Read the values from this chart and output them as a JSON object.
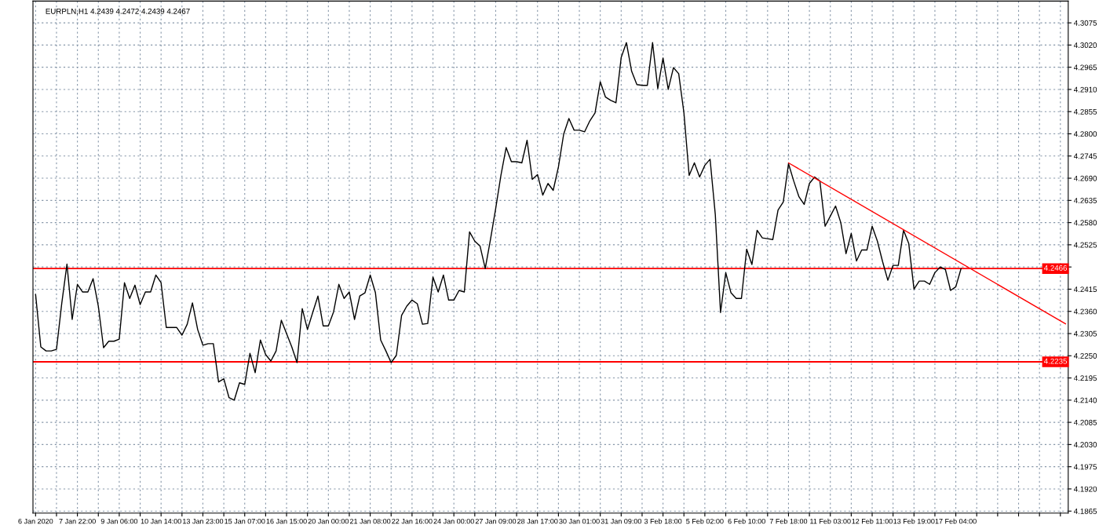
{
  "chart_data": {
    "type": "line",
    "title": "EURPLN,H1 4.2439 4.2472 4.2439 4.2467",
    "categories": [
      "6 Jan 2020",
      null,
      null,
      null,
      null,
      null,
      null,
      null,
      "7 Jan 22:00",
      null,
      null,
      null,
      null,
      null,
      null,
      null,
      "9 Jan 06:00",
      null,
      null,
      null,
      null,
      null,
      null,
      null,
      "10 Jan 14:00",
      null,
      null,
      null,
      null,
      null,
      null,
      null,
      "13 Jan 23:00",
      null,
      null,
      null,
      null,
      null,
      null,
      null,
      "15 Jan 07:00",
      null,
      null,
      null,
      null,
      null,
      null,
      null,
      "16 Jan 15:00",
      null,
      null,
      null,
      null,
      null,
      null,
      null,
      "20 Jan 00:00",
      null,
      null,
      null,
      null,
      null,
      null,
      null,
      "21 Jan 08:00",
      null,
      null,
      null,
      null,
      null,
      null,
      null,
      "22 Jan 16:00",
      null,
      null,
      null,
      null,
      null,
      null,
      null,
      "24 Jan 00:00",
      null,
      null,
      null,
      null,
      null,
      null,
      null,
      "27 Jan 09:00",
      null,
      null,
      null,
      null,
      null,
      null,
      null,
      "28 Jan 17:00",
      null,
      null,
      null,
      null,
      null,
      null,
      null,
      "30 Jan 01:00",
      null,
      null,
      null,
      null,
      null,
      null,
      null,
      "31 Jan 09:00",
      null,
      null,
      null,
      null,
      null,
      null,
      null,
      "3 Feb 18:00",
      null,
      null,
      null,
      null,
      null,
      null,
      null,
      "5 Feb 02:00",
      null,
      null,
      null,
      null,
      null,
      null,
      null,
      "6 Feb 10:00",
      null,
      null,
      null,
      null,
      null,
      null,
      null,
      "7 Feb 18:00",
      null,
      null,
      null,
      null,
      null,
      null,
      null,
      "11 Feb 03:00",
      null,
      null,
      null,
      null,
      null,
      null,
      null,
      "12 Feb 11:00",
      null,
      null,
      null,
      null,
      null,
      null,
      null,
      "13 Feb 19:00",
      null,
      null,
      null,
      null,
      null,
      null,
      null,
      "17 Feb 04:00",
      null,
      null,
      null,
      null,
      null,
      null,
      null,
      null,
      null,
      null,
      null,
      null,
      null,
      null,
      null,
      null,
      null,
      null,
      null,
      null,
      null
    ],
    "ylim": [
      4.186,
      4.3129
    ],
    "yticks": [
      {
        "value": 4.1865,
        "label": "4.1865"
      },
      {
        "value": 4.192,
        "label": "4.1920"
      },
      {
        "value": 4.1975,
        "label": "4.1975"
      },
      {
        "value": 4.203,
        "label": "4.2030"
      },
      {
        "value": 4.2085,
        "label": "4.2085"
      },
      {
        "value": 4.214,
        "label": "4.2140"
      },
      {
        "value": 4.2195,
        "label": "4.2195"
      },
      {
        "value": 4.225,
        "label": "4.2250"
      },
      {
        "value": 4.2305,
        "label": "4.2305"
      },
      {
        "value": 4.236,
        "label": "4.2360"
      },
      {
        "value": 4.2415,
        "label": "4.2415"
      },
      {
        "value": 4.247,
        "label": null
      },
      {
        "value": 4.2525,
        "label": "4.2525"
      },
      {
        "value": 4.258,
        "label": "4.2580"
      },
      {
        "value": 4.2635,
        "label": "4.2635"
      },
      {
        "value": 4.269,
        "label": "4.2690"
      },
      {
        "value": 4.2745,
        "label": "4.2745"
      },
      {
        "value": 4.28,
        "label": "4.2800"
      },
      {
        "value": 4.2855,
        "label": "4.2855"
      },
      {
        "value": 4.291,
        "label": "4.2910"
      },
      {
        "value": 4.2965,
        "label": "4.2965"
      },
      {
        "value": 4.302,
        "label": "4.3020"
      },
      {
        "value": 4.3075,
        "label": "4.3075"
      }
    ],
    "grid": true,
    "marker": "none",
    "line_style": "solid",
    "ref_lines": [
      {
        "axis": "y",
        "value": 4.2466,
        "label": "4.2466",
        "color": "#ff0000"
      },
      {
        "axis": "y",
        "value": 4.2235,
        "label": "4.2235",
        "color": "#ff0000"
      }
    ],
    "series": [
      {
        "color": "#000000",
        "values": [
          4.2402,
          4.2272,
          4.2262,
          4.2262,
          4.2266,
          4.2379,
          4.2477,
          4.234,
          4.2427,
          4.2408,
          4.2408,
          4.2441,
          4.2373,
          4.227,
          4.2286,
          4.2286,
          4.2291,
          4.2431,
          4.2392,
          4.2425,
          4.2377,
          4.2408,
          4.2408,
          4.245,
          4.2431,
          4.232,
          4.232,
          4.232,
          4.2301,
          4.2328,
          4.2381,
          4.2315,
          4.2276,
          4.228,
          4.228,
          4.2185,
          4.2193,
          4.2146,
          4.214,
          4.2183,
          4.2179,
          4.2256,
          4.2208,
          4.2289,
          4.2253,
          4.2237,
          4.2262,
          4.2338,
          4.2305,
          4.2272,
          4.2233,
          4.2367,
          4.2315,
          4.2357,
          4.2398,
          4.2324,
          4.2324,
          4.2359,
          4.2427,
          4.2392,
          4.2408,
          4.234,
          4.2398,
          4.2406,
          4.245,
          4.2406,
          4.2289,
          4.2262,
          4.2233,
          4.2251,
          4.235,
          4.2373,
          4.2388,
          4.2379,
          4.2328,
          4.233,
          4.2445,
          4.2408,
          4.245,
          4.2388,
          4.2388,
          4.2412,
          4.2408,
          4.2557,
          4.2534,
          4.2522,
          4.2466,
          4.2538,
          4.2615,
          4.2697,
          4.2766,
          4.2731,
          4.2731,
          4.2728,
          4.2784,
          4.2687,
          4.2699,
          4.2648,
          4.2677,
          4.266,
          4.2718,
          4.2799,
          4.2838,
          4.2809,
          4.2809,
          4.2805,
          4.2832,
          4.2852,
          4.2929,
          4.2891,
          4.2883,
          4.2877,
          4.2989,
          4.3026,
          4.2955,
          4.2922,
          4.292,
          4.292,
          4.3026,
          4.2912,
          4.2988,
          4.291,
          4.2964,
          4.2949,
          4.2852,
          4.2697,
          4.2728,
          4.2693,
          4.2722,
          4.2737,
          4.26,
          4.2357,
          4.2456,
          4.2406,
          4.2392,
          4.2392,
          4.2514,
          4.2476,
          4.2561,
          4.2542,
          4.254,
          4.2538,
          4.2611,
          4.2631,
          4.2726,
          4.2683,
          4.2644,
          4.2625,
          4.2677,
          4.2693,
          4.2683,
          4.2571,
          4.2596,
          4.2621,
          4.258,
          4.2503,
          4.2553,
          4.2485,
          4.2512,
          4.2512,
          4.2571,
          4.2534,
          4.2483,
          4.2437,
          4.2474,
          4.2474,
          4.2561,
          4.2528,
          4.2415,
          4.2435,
          4.2435,
          4.2427,
          4.2456,
          4.247,
          4.2464,
          4.2412,
          4.2421,
          4.2466,
          null,
          null,
          null,
          null,
          null,
          null,
          null,
          null,
          null,
          null,
          null,
          null,
          null,
          null,
          null,
          null,
          null,
          null,
          null,
          null
        ]
      },
      {
        "type": "line",
        "color": "#ff0000",
        "values": [
          null,
          null,
          null,
          null,
          null,
          null,
          null,
          null,
          null,
          null,
          null,
          null,
          null,
          null,
          null,
          null,
          null,
          null,
          null,
          null,
          null,
          null,
          null,
          null,
          null,
          null,
          null,
          null,
          null,
          null,
          null,
          null,
          null,
          null,
          null,
          null,
          null,
          null,
          null,
          null,
          null,
          null,
          null,
          null,
          null,
          null,
          null,
          null,
          null,
          null,
          null,
          null,
          null,
          null,
          null,
          null,
          null,
          null,
          null,
          null,
          null,
          null,
          null,
          null,
          null,
          null,
          null,
          null,
          null,
          null,
          null,
          null,
          null,
          null,
          null,
          null,
          null,
          null,
          null,
          null,
          null,
          null,
          null,
          null,
          null,
          null,
          null,
          null,
          null,
          null,
          null,
          null,
          null,
          null,
          null,
          null,
          null,
          null,
          null,
          null,
          null,
          null,
          null,
          null,
          null,
          null,
          null,
          null,
          null,
          null,
          null,
          null,
          null,
          null,
          null,
          null,
          null,
          null,
          null,
          null,
          null,
          null,
          null,
          null,
          null,
          null,
          null,
          null,
          null,
          null,
          null,
          null,
          null,
          null,
          null,
          null,
          null,
          null,
          null,
          null,
          null,
          null,
          null,
          null,
          4.2728,
          null,
          null,
          null,
          null,
          null,
          null,
          null,
          null,
          null,
          null,
          null,
          null,
          null,
          null,
          null,
          null,
          null,
          null,
          null,
          null,
          null,
          null,
          null,
          null,
          null,
          null,
          null,
          null,
          null,
          null,
          null,
          null,
          null,
          null,
          null,
          null,
          null,
          null,
          null,
          null,
          null,
          null,
          null,
          null,
          null,
          null,
          null,
          null,
          null,
          null,
          null,
          null,
          4.2329
        ]
      }
    ]
  }
}
